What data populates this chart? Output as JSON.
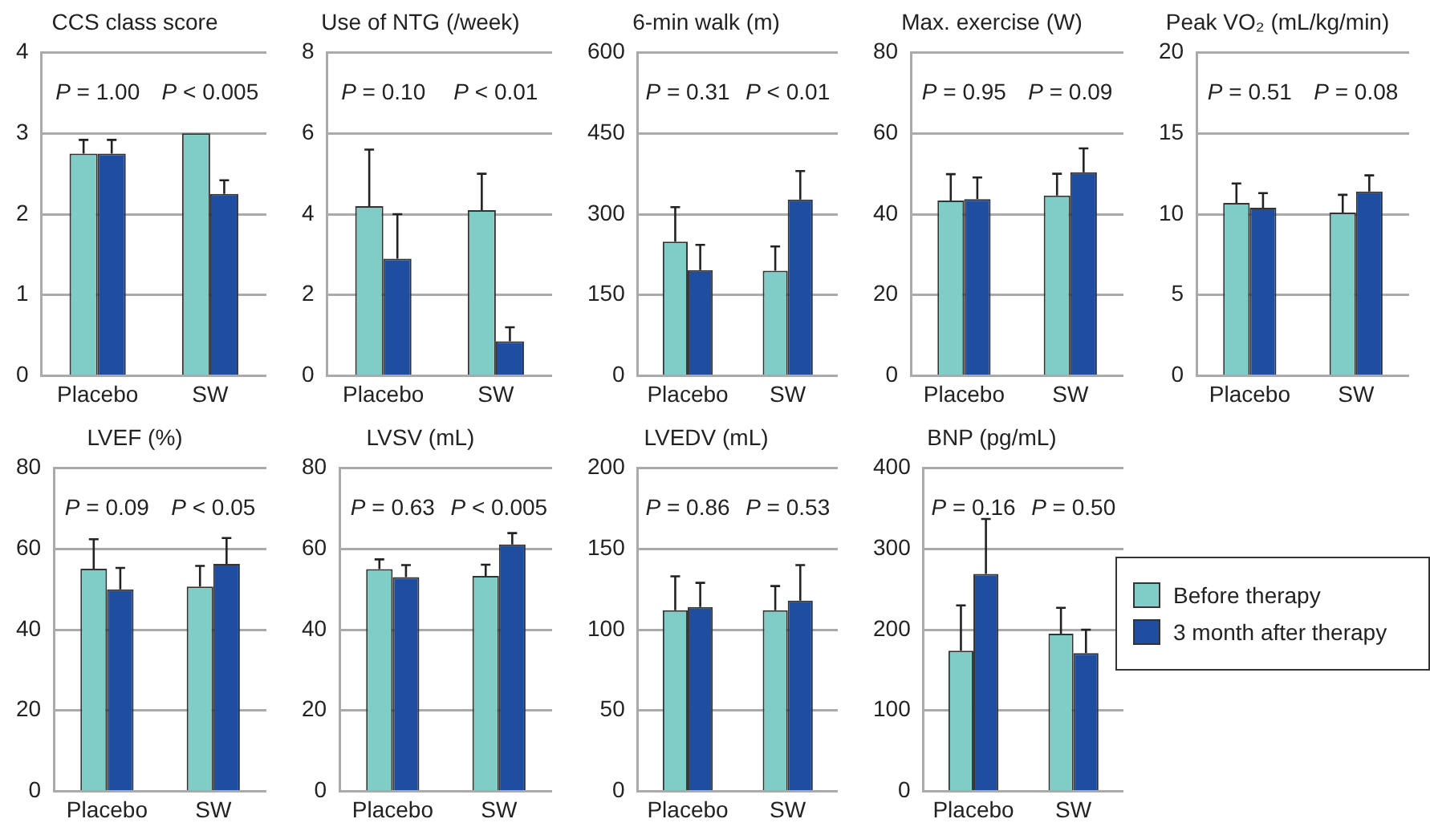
{
  "chart_data": [
    {
      "type": "bar",
      "title": "CCS class score",
      "categories": [
        "Placebo",
        "SW"
      ],
      "series": [
        {
          "color": "#7fcdc6",
          "values": [
            2.75,
            3.0
          ],
          "errors": [
            [
              2.75,
              2.92
            ],
            null
          ]
        },
        {
          "color": "#1f4ea0",
          "values": [
            2.75,
            2.25
          ],
          "errors": [
            [
              2.75,
              2.92
            ],
            [
              2.25,
              2.42
            ]
          ]
        }
      ],
      "ylim": [
        0,
        4
      ],
      "yticks": [
        0,
        1,
        2,
        3,
        4
      ],
      "grid": "y",
      "legend": false,
      "annotations": [
        "P = 1.00",
        "P < 0.005"
      ]
    },
    {
      "type": "bar",
      "title": "Use of NTG (/week)",
      "categories": [
        "Placebo",
        "SW"
      ],
      "series": [
        {
          "color": "#7fcdc6",
          "values": [
            4.2,
            4.1
          ],
          "errors": [
            [
              4.2,
              5.6
            ],
            [
              4.1,
              5.0
            ]
          ]
        },
        {
          "color": "#1f4ea0",
          "values": [
            2.9,
            0.85
          ],
          "errors": [
            [
              2.9,
              4.0
            ],
            [
              0.85,
              1.2
            ]
          ]
        }
      ],
      "ylim": [
        0,
        8
      ],
      "yticks": [
        0,
        2,
        4,
        6,
        8
      ],
      "grid": "y",
      "legend": false,
      "annotations": [
        "P = 0.10",
        "P < 0.01"
      ]
    },
    {
      "type": "bar",
      "title": "6-min walk (m)",
      "categories": [
        "Placebo",
        "SW"
      ],
      "series": [
        {
          "color": "#7fcdc6",
          "values": [
            249,
            195
          ],
          "errors": [
            [
              249,
              313
            ],
            [
              195,
              240
            ]
          ]
        },
        {
          "color": "#1f4ea0",
          "values": [
            196,
            327
          ],
          "errors": [
            [
              196,
              243
            ],
            [
              327,
              380
            ]
          ]
        }
      ],
      "ylim": [
        0,
        600
      ],
      "yticks": [
        0,
        150,
        300,
        450,
        600
      ],
      "grid": "y",
      "legend": false,
      "annotations": [
        "P = 0.31",
        "P < 0.01"
      ]
    },
    {
      "type": "bar",
      "title": "Max. exercise (W)",
      "categories": [
        "Placebo",
        "SW"
      ],
      "series": [
        {
          "color": "#7fcdc6",
          "values": [
            43.4,
            44.6
          ],
          "errors": [
            [
              43.4,
              49.9
            ],
            [
              44.6,
              50.0
            ]
          ]
        },
        {
          "color": "#1f4ea0",
          "values": [
            43.7,
            50.4
          ],
          "errors": [
            [
              43.7,
              49.1
            ],
            [
              50.4,
              56.3
            ]
          ]
        }
      ],
      "ylim": [
        0,
        80
      ],
      "yticks": [
        0,
        20,
        40,
        60,
        80
      ],
      "grid": "y",
      "legend": false,
      "annotations": [
        "P = 0.95",
        "P = 0.09"
      ]
    },
    {
      "type": "bar",
      "title": "Peak VO₂ (mL/kg/min)",
      "categories": [
        "Placebo",
        "SW"
      ],
      "series": [
        {
          "color": "#7fcdc6",
          "values": [
            10.7,
            10.1
          ],
          "errors": [
            [
              10.7,
              11.9
            ],
            [
              10.1,
              11.2
            ]
          ]
        },
        {
          "color": "#1f4ea0",
          "values": [
            10.4,
            11.4
          ],
          "errors": [
            [
              10.4,
              11.3
            ],
            [
              11.4,
              12.4
            ]
          ]
        }
      ],
      "ylim": [
        0,
        20
      ],
      "yticks": [
        0,
        5,
        10,
        15,
        20
      ],
      "grid": "y",
      "legend": false,
      "annotations": [
        "P = 0.51",
        "P = 0.08"
      ]
    },
    {
      "type": "bar",
      "title": "LVEF (%)",
      "categories": [
        "Placebo",
        "SW"
      ],
      "series": [
        {
          "color": "#7fcdc6",
          "values": [
            55.1,
            50.7
          ],
          "errors": [
            [
              55.1,
              62.4
            ],
            [
              50.7,
              55.8
            ]
          ]
        },
        {
          "color": "#1f4ea0",
          "values": [
            50.0,
            56.3
          ],
          "errors": [
            [
              50.0,
              55.3
            ],
            [
              56.3,
              62.7
            ]
          ]
        }
      ],
      "ylim": [
        0,
        80
      ],
      "yticks": [
        0,
        20,
        40,
        60,
        80
      ],
      "grid": "y",
      "legend": false,
      "annotations": [
        "P = 0.09",
        "P < 0.05"
      ]
    },
    {
      "type": "bar",
      "title": "LVSV (mL)",
      "categories": [
        "Placebo",
        "SW"
      ],
      "series": [
        {
          "color": "#7fcdc6",
          "values": [
            55.0,
            53.3
          ],
          "errors": [
            [
              55.0,
              57.4
            ],
            [
              53.3,
              56.1
            ]
          ]
        },
        {
          "color": "#1f4ea0",
          "values": [
            53.0,
            61.1
          ],
          "errors": [
            [
              53.0,
              56.0
            ],
            [
              61.1,
              63.9
            ]
          ]
        }
      ],
      "ylim": [
        0,
        80
      ],
      "yticks": [
        0,
        20,
        40,
        60,
        80
      ],
      "grid": "y",
      "legend": false,
      "annotations": [
        "P = 0.63",
        "P < 0.005"
      ]
    },
    {
      "type": "bar",
      "title": "LVEDV (mL)",
      "categories": [
        "Placebo",
        "SW"
      ],
      "series": [
        {
          "color": "#7fcdc6",
          "values": [
            112,
            112
          ],
          "errors": [
            [
              112,
              133
            ],
            [
              112,
              127
            ]
          ]
        },
        {
          "color": "#1f4ea0",
          "values": [
            114,
            118
          ],
          "errors": [
            [
              114,
              129
            ],
            [
              118,
              140
            ]
          ]
        }
      ],
      "ylim": [
        0,
        200
      ],
      "yticks": [
        0,
        50,
        100,
        150,
        200
      ],
      "grid": "y",
      "legend": false,
      "annotations": [
        "P = 0.86",
        "P = 0.53"
      ]
    },
    {
      "type": "bar",
      "title": "BNP (pg/mL)",
      "categories": [
        "Placebo",
        "SW"
      ],
      "series": [
        {
          "name": "Before therapy",
          "color": "#7fcdc6",
          "values": [
            174,
            195
          ],
          "errors": [
            [
              174,
              230
            ],
            [
              195,
              227
            ]
          ]
        },
        {
          "name": "3 month after therapy",
          "color": "#1f4ea0",
          "values": [
            269,
            171
          ],
          "errors": [
            [
              269,
              337
            ],
            [
              171,
              200
            ]
          ]
        }
      ],
      "ylim": [
        0,
        400
      ],
      "yticks": [
        0,
        100,
        200,
        300,
        400
      ],
      "grid": "y",
      "legend": "right",
      "annotations": [
        "P = 0.16",
        "P = 0.50"
      ]
    }
  ]
}
